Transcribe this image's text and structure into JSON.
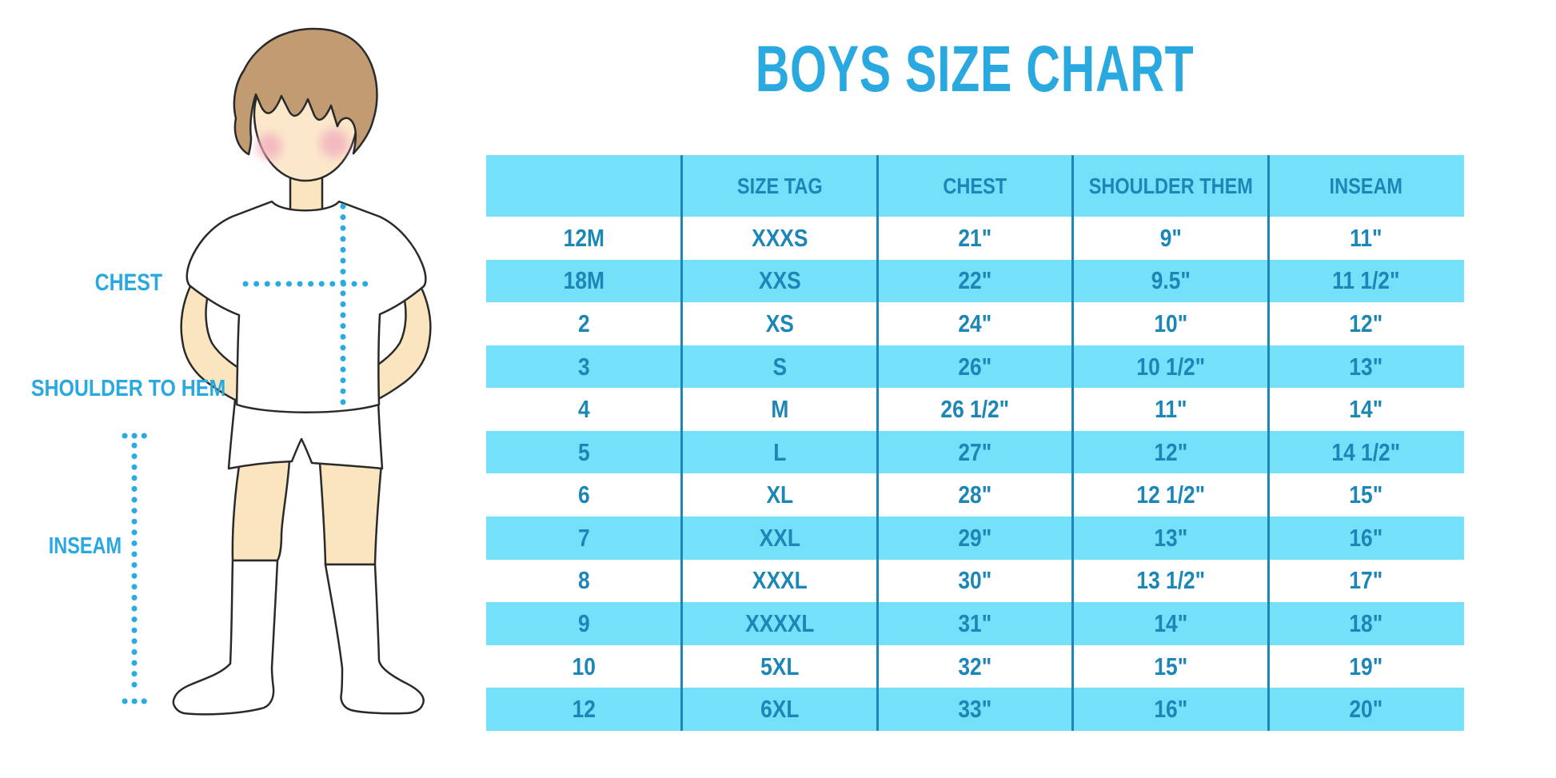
{
  "title": "BOYS SIZE CHART",
  "figure": {
    "labels": {
      "chest": "CHEST",
      "shoulder_to_hem": "SHOULDER TO HEM",
      "inseam": "INSEAM"
    }
  },
  "colors": {
    "accent_blue": "#29A9E0",
    "stripe_cyan": "#75E0F9",
    "table_text_teal": "#1C87B7",
    "skin": "#FAE5BE",
    "hair": "#C19B72",
    "blush": "#F3AEBE",
    "outline": "#2A2A2A"
  },
  "chart_data": {
    "type": "table",
    "title": "BOYS SIZE CHART",
    "columns": [
      "",
      "SIZE TAG",
      "CHEST",
      "SHOULDER THEM",
      "INSEAM"
    ],
    "rows": [
      [
        "12M",
        "XXXS",
        "21\"",
        "9\"",
        "11\""
      ],
      [
        "18M",
        "XXS",
        "22\"",
        "9.5\"",
        "11 1/2\""
      ],
      [
        "2",
        "XS",
        "24\"",
        "10\"",
        "12\""
      ],
      [
        "3",
        "S",
        "26\"",
        "10 1/2\"",
        "13\""
      ],
      [
        "4",
        "M",
        "26 1/2\"",
        "11\"",
        "14\""
      ],
      [
        "5",
        "L",
        "27\"",
        "12\"",
        "14 1/2\""
      ],
      [
        "6",
        "XL",
        "28\"",
        "12 1/2\"",
        "15\""
      ],
      [
        "7",
        "XXL",
        "29\"",
        "13\"",
        "16\""
      ],
      [
        "8",
        "XXXL",
        "30\"",
        "13 1/2\"",
        "17\""
      ],
      [
        "9",
        "XXXXL",
        "31\"",
        "14\"",
        "18\""
      ],
      [
        "10",
        "5XL",
        "32\"",
        "15\"",
        "19\""
      ],
      [
        "12",
        "6XL",
        "33\"",
        "16\"",
        "20\""
      ]
    ]
  }
}
